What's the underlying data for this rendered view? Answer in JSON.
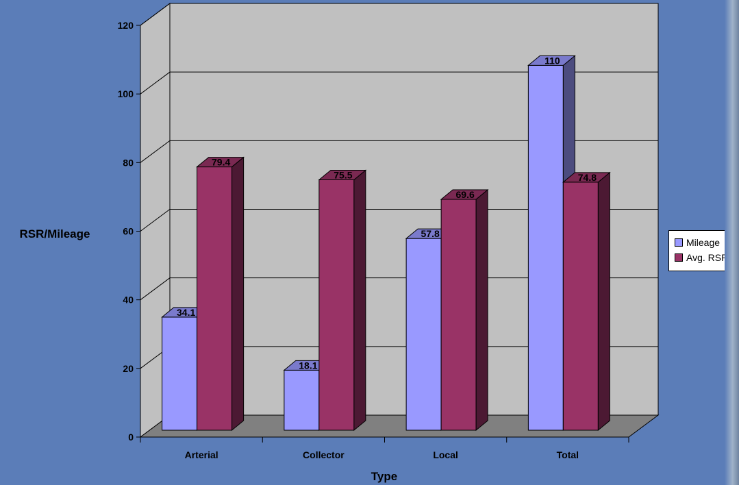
{
  "chart_data": {
    "type": "bar",
    "style": "3d-clustered-column",
    "categories": [
      "Arterial",
      "Collector",
      "Local",
      "Total"
    ],
    "series": [
      {
        "name": "Mileage",
        "values": [
          34.1,
          18.1,
          57.8,
          110
        ],
        "labels": [
          "34.1",
          "18.1",
          "57.8",
          "110"
        ],
        "color": "#9999ff",
        "side_color": "#4c4c7f",
        "top_color": "#7a7acc"
      },
      {
        "name": "Avg. RSR",
        "values": [
          79.4,
          75.5,
          69.6,
          74.8
        ],
        "labels": [
          "79.4",
          "75.5",
          "69.6",
          "74.8"
        ],
        "color": "#993366",
        "side_color": "#4c1933",
        "top_color": "#7a2952"
      }
    ],
    "xlabel": "Type",
    "ylabel": "RSR/Mileage",
    "ylim": [
      0,
      120
    ],
    "yticks": [
      "0",
      "20",
      "40",
      "60",
      "80",
      "100",
      "120"
    ],
    "grid": true,
    "legend": "right",
    "colors": {
      "background": "#5b7db8",
      "wall": "#c0c0c0",
      "floor": "#808080",
      "gridline": "#000000"
    }
  }
}
